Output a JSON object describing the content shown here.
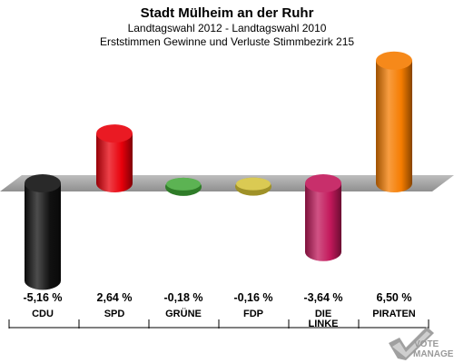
{
  "chart_data": {
    "type": "bar",
    "title": "Stadt Mülheim an der Ruhr",
    "subtitle": "Landtagswahl 2012 - Landtagswahl 2010",
    "subtitle2": "Erststimmen Gewinne und Verluste Stimmbezirk 215",
    "categories": [
      "CDU",
      "SPD",
      "GRÜNE",
      "FDP",
      "DIE LINKE",
      "PIRATEN"
    ],
    "category_lines": [
      [
        "CDU"
      ],
      [
        "SPD"
      ],
      [
        "GRÜNE"
      ],
      [
        "FDP"
      ],
      [
        "DIE",
        "LINKE"
      ],
      [
        "PIRATEN"
      ]
    ],
    "values": [
      -5.16,
      2.64,
      -0.18,
      -0.16,
      -3.64,
      6.5
    ],
    "value_labels": [
      "-5,16 %",
      "2,64 %",
      "-0,18 %",
      "-0,16 %",
      "-3,64 %",
      "6,50 %"
    ],
    "colors": [
      "#111111",
      "#e8000b",
      "#3fa535",
      "#d4c135",
      "#c2185b",
      "#f57c00"
    ],
    "ylim": [
      -5.5,
      7.0
    ],
    "grid": false,
    "legend": "none"
  },
  "logo": {
    "line1": "VOTE",
    "line2": "MANAGER"
  }
}
